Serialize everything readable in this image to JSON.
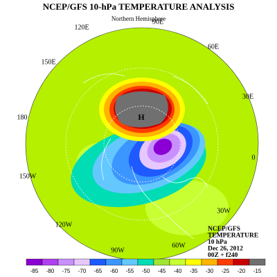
{
  "title": "NCEP/GFS 10-hPa TEMPERATURE ANALYSIS",
  "subtitle": "Northern Hemisphere",
  "map": {
    "high_label": "H",
    "longitudes": [
      "90E",
      "120E",
      "60E",
      "150E",
      "30E",
      "180",
      "0",
      "150W",
      "30W",
      "120W",
      "90W",
      "60W"
    ]
  },
  "info": [
    "NCEP/GFS",
    "TEMPERATURE",
    "10 hPa",
    "Dec 26, 2012",
    "00Z + f240"
  ],
  "colorbar": {
    "ticks": [
      -85,
      -80,
      -75,
      -70,
      -65,
      -60,
      -55,
      -50,
      -45,
      -40,
      -35,
      -30,
      -25,
      -20,
      -15
    ],
    "colors": [
      "#8a00d4",
      "#b040f0",
      "#c890ff",
      "#e6c8ff",
      "#1e5aff",
      "#3c96ff",
      "#64c8ff",
      "#00dcb4",
      "#a0e632",
      "#c8ff32",
      "#ffff00",
      "#ffb400",
      "#ff3c00",
      "#c80000",
      "#707070"
    ]
  }
}
